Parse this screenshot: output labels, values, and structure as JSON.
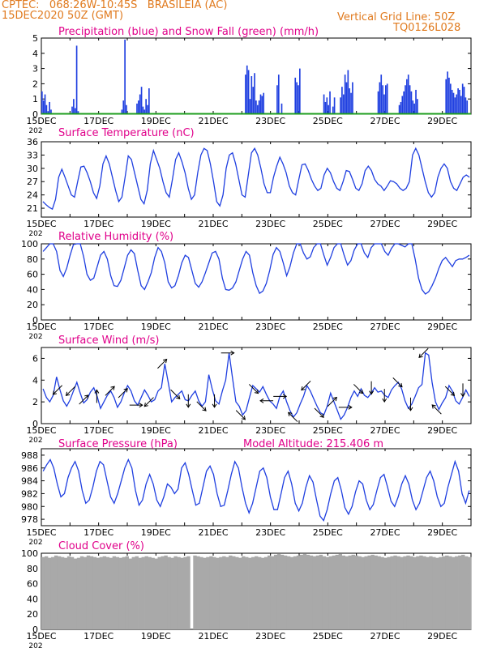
{
  "header": {
    "line1": "CPTEC:   068:26W-10:45S   BRASILEIA (AC)",
    "line2": "15DEC2020 50Z (GMT)",
    "right1": "Vertical Grid Line: 50Z",
    "right2": "TQ0126L028"
  },
  "colors": {
    "header": "#e07a1e",
    "title": "#e0008a",
    "line": "#1f3fe0",
    "snow": "#1e9e1e",
    "cloud": "#a9a9a9",
    "arrow": "#000000"
  },
  "x_ticks": [
    "15DEC",
    "17DEC",
    "19DEC",
    "21DEC",
    "23DEC",
    "25DEC",
    "27DEC",
    "29DEC"
  ],
  "year_fragment": "202",
  "chart_data": [
    {
      "id": "precip",
      "type": "bar",
      "title": "Precipitation (blue) and Snow Fall (green) (mm/h)",
      "ylim": [
        0,
        5
      ],
      "yticks": [
        "0",
        "1",
        "2",
        "3",
        "4",
        "5"
      ],
      "series": [
        {
          "name": "Precipitation",
          "color": "#1f3fe0",
          "values": [
            1.5,
            0.9,
            1.3,
            0.6,
            0.2,
            0.8,
            0.3,
            0,
            0,
            0,
            0,
            0,
            0,
            0,
            0,
            0,
            0,
            0,
            0,
            0,
            0.5,
            1.0,
            0.4,
            4.5,
            0.2,
            0,
            0,
            0,
            0,
            0,
            0,
            0,
            0,
            0,
            0,
            0,
            0,
            0,
            0,
            0,
            0,
            0,
            0,
            0,
            0,
            0,
            0,
            0,
            0,
            0,
            0,
            0,
            0,
            0.3,
            0.9,
            4.9,
            0.6,
            0,
            0,
            0,
            0,
            0,
            0,
            0.7,
            0.9,
            1.3,
            1.8,
            0.5,
            0.3,
            1.0,
            0.6,
            1.7,
            0,
            0,
            0,
            0,
            0,
            0,
            0,
            0,
            0,
            0,
            0,
            0,
            0,
            0,
            0,
            0,
            0,
            0,
            0,
            0,
            0,
            0,
            0,
            0,
            0,
            0,
            0,
            0,
            0,
            0,
            0,
            0,
            0,
            0,
            0,
            0,
            0,
            0,
            0,
            0,
            0,
            0,
            0,
            0,
            0,
            0,
            0,
            0,
            0,
            0,
            0,
            0,
            0,
            0,
            0,
            0,
            0,
            0,
            0,
            0,
            0,
            0,
            0,
            2.6,
            3.2,
            2.9,
            1.0,
            2.5,
            1.8,
            2.7,
            0.9,
            0.6,
            0.9,
            1.3,
            1.2,
            1.4,
            0,
            0,
            0,
            0,
            0,
            0,
            0,
            0,
            1.9,
            2.6,
            0,
            0.7,
            0,
            0,
            0,
            0,
            0,
            0,
            0,
            0,
            2.4,
            2.1,
            1.9,
            3.0,
            0,
            0,
            0,
            0,
            0,
            0,
            0,
            0,
            0,
            0,
            0,
            0,
            0,
            0,
            0,
            1.3,
            0.8,
            1.1,
            0.6,
            1.5,
            0,
            0.5,
            1.1,
            0,
            0,
            0,
            1.1,
            1.8,
            1.3,
            2.6,
            2.1,
            2.9,
            1.7,
            1.4,
            2.1,
            0,
            0,
            0,
            0,
            0,
            0,
            0,
            0,
            0,
            0,
            0,
            0,
            0,
            0,
            0,
            0,
            1.5,
            2.1,
            2.6,
            1.9,
            1.3,
            1.9,
            2.0,
            0,
            0,
            0,
            0,
            0,
            0,
            0,
            0.6,
            0.8,
            1.2,
            1.5,
            1.9,
            2.3,
            2.6,
            1.9,
            1.5,
            0.9,
            0.7,
            1.6,
            1.0,
            0,
            0,
            0,
            0,
            0,
            0,
            0,
            0,
            0,
            0,
            0,
            0,
            0,
            0,
            0,
            0,
            0,
            0,
            2.3,
            2.8,
            2.4,
            2.0,
            1.6,
            1.4,
            1.1,
            1.3,
            1.7,
            1.6,
            1.2,
            2.0,
            1.8,
            1.1,
            0.9,
            0,
            0
          ]
        },
        {
          "name": "Snow Fall",
          "color": "#1e9e1e",
          "values": [
            0
          ]
        }
      ]
    },
    {
      "id": "temp",
      "type": "line",
      "title": "Surface Temperature (nC)",
      "ylim": [
        19,
        36
      ],
      "yticks": [
        "21",
        "24",
        "27",
        "30",
        "33",
        "36"
      ],
      "series": [
        {
          "name": "",
          "color": "#1f3fe0",
          "values": [
            22.5,
            21.8,
            21.2,
            20.8,
            23,
            28,
            29.8,
            28,
            26,
            24,
            23.5,
            27,
            30.3,
            30.5,
            29,
            27,
            24.5,
            23.2,
            26,
            31,
            32.8,
            31,
            28,
            25,
            22.5,
            23.5,
            28,
            32.8,
            32,
            29,
            26,
            23,
            22,
            25,
            31,
            34,
            32,
            30,
            27,
            24.5,
            23.5,
            27.5,
            32,
            33.5,
            31.5,
            29,
            25.5,
            23,
            24,
            29,
            33,
            34.5,
            34,
            31,
            27,
            22.5,
            21.5,
            24,
            30,
            33,
            33.5,
            31,
            27.5,
            24,
            23.5,
            28.5,
            33.5,
            34.5,
            33,
            30,
            26.5,
            24.5,
            24.5,
            28,
            30.5,
            32.5,
            31,
            29,
            26,
            24.5,
            24,
            27.5,
            30.8,
            31,
            29.5,
            27.5,
            26,
            25,
            25.5,
            28.5,
            30,
            29,
            27,
            25.5,
            25,
            27,
            29.5,
            29.3,
            27.5,
            25.5,
            25,
            26.5,
            29.5,
            30.5,
            29.5,
            27.5,
            26.5,
            26,
            25,
            26,
            27.2,
            27,
            26.5,
            25.5,
            25,
            25.5,
            27,
            33,
            34.5,
            33,
            30,
            27,
            24.5,
            23.5,
            24.5,
            28,
            30,
            31,
            30,
            27,
            25.5,
            25,
            26.5,
            28,
            28.5,
            28
          ]
        }
      ]
    },
    {
      "id": "rh",
      "type": "line",
      "title": "Relative Humidity (%)",
      "ylim": [
        0,
        100
      ],
      "yticks": [
        "0",
        "20",
        "40",
        "60",
        "80",
        "100"
      ],
      "series": [
        {
          "name": "",
          "color": "#1f3fe0",
          "values": [
            90,
            95,
            100,
            100,
            90,
            65,
            57,
            68,
            85,
            99,
            100,
            100,
            83,
            60,
            52,
            55,
            70,
            85,
            90,
            80,
            58,
            45,
            44,
            52,
            68,
            85,
            92,
            87,
            65,
            45,
            40,
            50,
            62,
            82,
            95,
            90,
            75,
            50,
            42,
            45,
            58,
            75,
            85,
            82,
            65,
            48,
            43,
            50,
            62,
            75,
            88,
            90,
            80,
            55,
            40,
            39,
            42,
            50,
            65,
            80,
            90,
            85,
            62,
            45,
            35,
            38,
            48,
            65,
            86,
            95,
            90,
            75,
            58,
            70,
            88,
            100,
            100,
            88,
            80,
            83,
            95,
            100,
            100,
            85,
            72,
            82,
            95,
            100,
            100,
            85,
            72,
            78,
            92,
            100,
            100,
            88,
            82,
            95,
            100,
            100,
            100,
            90,
            85,
            94,
            100,
            100,
            98,
            96,
            100,
            100,
            80,
            55,
            40,
            34,
            37,
            45,
            55,
            68,
            78,
            82,
            76,
            70,
            78,
            80,
            80,
            82,
            85
          ]
        }
      ]
    },
    {
      "id": "wind",
      "type": "line",
      "title": "Surface Wind (m/s)",
      "ylim": [
        0,
        7
      ],
      "yticks": [
        "0",
        "2",
        "4",
        "6"
      ],
      "series": [
        {
          "name": "",
          "color": "#1f3fe0",
          "values": [
            3.2,
            2.4,
            2.0,
            2.6,
            4.3,
            3.1,
            2.1,
            1.6,
            2.2,
            3.0,
            3.8,
            2.8,
            1.9,
            2.2,
            2.9,
            3.3,
            2.5,
            1.4,
            2.0,
            2.6,
            3.0,
            2.4,
            1.5,
            2.0,
            2.8,
            3.5,
            3.0,
            2.1,
            1.7,
            2.4,
            3.1,
            2.6,
            2.0,
            2.2,
            3.0,
            3.3,
            5.5,
            3.8,
            2.0,
            2.4,
            2.7,
            3.0,
            2.2,
            2.1,
            2.6,
            3.0,
            2.1,
            1.6,
            2.0,
            4.5,
            3.2,
            2.1,
            1.8,
            3.0,
            4.0,
            6.5,
            4.2,
            2.0,
            1.6,
            0.8,
            1.2,
            2.4,
            3.5,
            3.2,
            2.9,
            3.4,
            2.7,
            2.1,
            1.8,
            1.4,
            2.5,
            3.0,
            2.0,
            1.2,
            0.6,
            1.0,
            1.8,
            2.5,
            3.5,
            3.0,
            2.3,
            1.6,
            1.0,
            0.8,
            1.6,
            2.8,
            2.0,
            1.2,
            0.4,
            0.8,
            1.5,
            2.4,
            3.0,
            2.5,
            3.2,
            2.6,
            2.4,
            2.8,
            3.3,
            2.9,
            3.0,
            2.6,
            2.4,
            3.1,
            3.5,
            3.8,
            3.2,
            2.1,
            1.4,
            1.8,
            2.5,
            3.3,
            3.6,
            6.5,
            6.3,
            3.8,
            2.0,
            1.3,
            1.9,
            2.4,
            3.5,
            3.0,
            2.1,
            1.8,
            2.4,
            3.1,
            2.5
          ]
        }
      ],
      "arrows": [
        {
          "dir": "SW"
        },
        {
          "dir": "SW"
        },
        {
          "dir": "NE"
        },
        {
          "dir": "N"
        },
        {
          "dir": "NE"
        },
        {
          "dir": "NE"
        },
        {
          "dir": "E"
        },
        {
          "dir": "SW"
        },
        {
          "dir": "NE"
        },
        {
          "dir": "SE"
        },
        {
          "dir": "S"
        },
        {
          "dir": "SE"
        },
        {
          "dir": "S"
        },
        {
          "dir": "E"
        },
        {
          "dir": "SE"
        },
        {
          "dir": "SE"
        },
        {
          "dir": "W"
        },
        {
          "dir": "E"
        },
        {
          "dir": "NW"
        },
        {
          "dir": "SW"
        },
        {
          "dir": "SE"
        },
        {
          "dir": "NE"
        },
        {
          "dir": "E"
        },
        {
          "dir": "SE"
        },
        {
          "dir": "S"
        },
        {
          "dir": "S"
        },
        {
          "dir": "SE"
        },
        {
          "dir": "S"
        },
        {
          "dir": "SW"
        },
        {
          "dir": "NW"
        },
        {
          "dir": "SE"
        },
        {
          "dir": "S"
        }
      ]
    },
    {
      "id": "pres",
      "type": "line",
      "title": "Surface Pressure (hPa)",
      "annotation": "Model Altitude: 215.406 m",
      "ylim": [
        977,
        989
      ],
      "yticks": [
        "978",
        "980",
        "982",
        "984",
        "986",
        "988"
      ],
      "series": [
        {
          "name": "",
          "color": "#1f3fe0",
          "values": [
            985.5,
            986.5,
            987.3,
            986,
            983.5,
            981.5,
            982,
            984.5,
            986,
            987,
            985.5,
            982.5,
            980.5,
            981,
            983,
            985.5,
            987,
            986.5,
            984,
            981.5,
            980.5,
            982,
            984,
            986,
            987.3,
            986,
            982.5,
            980.2,
            981,
            983.5,
            985,
            983.5,
            981,
            980,
            981.5,
            983.5,
            983,
            982,
            982.7,
            986,
            986.8,
            985,
            982.5,
            980.2,
            980.5,
            983,
            985.5,
            986.3,
            985,
            982,
            980,
            980.2,
            982.5,
            985,
            987,
            986,
            983,
            980.5,
            979,
            980.5,
            983,
            985.5,
            986,
            984.5,
            981.5,
            979.5,
            979.5,
            982,
            984.5,
            985.5,
            983.5,
            980.5,
            979.3,
            980.5,
            983,
            984.8,
            983.8,
            981,
            978.5,
            977.8,
            979.5,
            982,
            984,
            984.5,
            982.5,
            979.8,
            978.8,
            980,
            982.3,
            984,
            983.5,
            981,
            979.5,
            980.3,
            982.5,
            984.5,
            985,
            983,
            980.8,
            980,
            981.5,
            983.5,
            984.8,
            983.5,
            981,
            979.5,
            980.5,
            982.5,
            984.5,
            985.5,
            984,
            981.5,
            980,
            980.5,
            983,
            985,
            987,
            985.5,
            982,
            980.5,
            982.5
          ]
        }
      ]
    },
    {
      "id": "cloud",
      "type": "area",
      "title": "Cloud Cover (%)",
      "ylim": [
        0,
        100
      ],
      "yticks": [
        "0",
        "20",
        "40",
        "60",
        "80",
        "100"
      ],
      "series": [
        {
          "name": "",
          "color": "#a9a9a9",
          "values": [
            95,
            96,
            94,
            95,
            97,
            96,
            95,
            94,
            96,
            95,
            93,
            94,
            96,
            95,
            97,
            96,
            95,
            94,
            95,
            96,
            95,
            94,
            96,
            95,
            94,
            95,
            96,
            93,
            95,
            96,
            94,
            95,
            96,
            95,
            94,
            93,
            95,
            96,
            97,
            95,
            94,
            96,
            95,
            94,
            95,
            96,
            0,
            97,
            96,
            95,
            94,
            95,
            96,
            95,
            94,
            95,
            96,
            95,
            97,
            96,
            95,
            94,
            96,
            95,
            94,
            95,
            96,
            95,
            94,
            95,
            97,
            96,
            98,
            99,
            98,
            97,
            96,
            95,
            96,
            97,
            98,
            99,
            98,
            97,
            96,
            97,
            98,
            96,
            95,
            96,
            97,
            98,
            99,
            97,
            96,
            97,
            98,
            97,
            96,
            95,
            96,
            97,
            98,
            97,
            96,
            95,
            94,
            95,
            96,
            97,
            96,
            95,
            96,
            97,
            96,
            95,
            96,
            97,
            96,
            95,
            96,
            95,
            94,
            95,
            96,
            97,
            96,
            95,
            96,
            97,
            98,
            96,
            95
          ]
        }
      ]
    }
  ]
}
